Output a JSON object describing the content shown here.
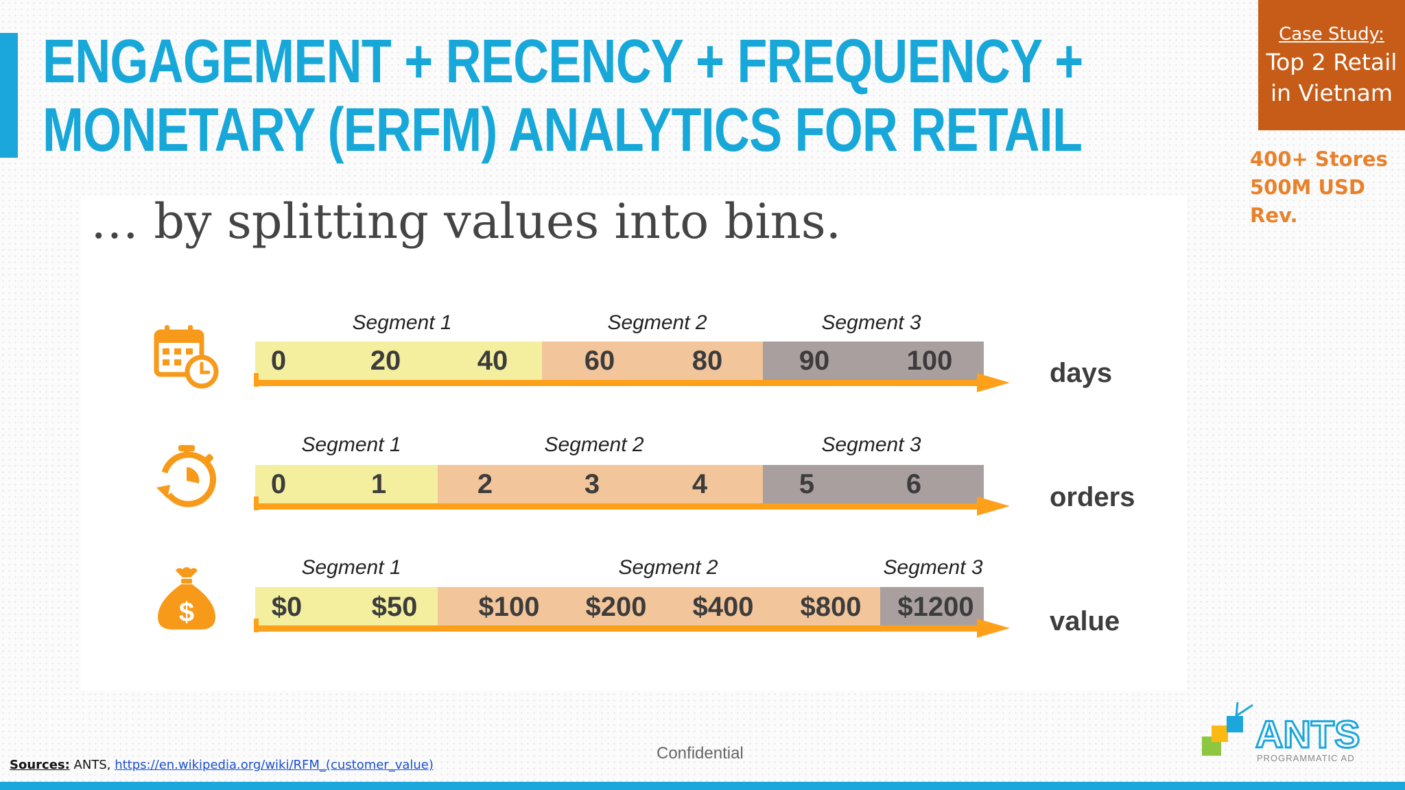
{
  "title": {
    "line1": "ENGAGEMENT + RECENCY + FREQUENCY +",
    "line2": "MONETARY (ERFM) ANALYTICS FOR RETAIL"
  },
  "case_study": {
    "label": "Case Study:",
    "line1": "Top 2 Retail",
    "line2": "in Vietnam"
  },
  "stats": {
    "line1": "400+ Stores",
    "line2": "500M USD Rev."
  },
  "subtitle": "… by splitting values into bins.",
  "colors": {
    "segment1": "#f3ef9f",
    "segment2": "#f3c59b",
    "segment3": "#a99f9f",
    "arrow": "#fea01a",
    "icon": "#f79a1a",
    "title": "#17a8d9"
  },
  "chart_data": [
    {
      "type": "bar",
      "unit": "days",
      "icon": "calendar-clock-icon",
      "ticks": [
        "0",
        "20",
        "40",
        "60",
        "80",
        "90",
        "100"
      ],
      "segments": [
        {
          "label": "Segment 1",
          "ticks": [
            "0",
            "20",
            "40"
          ]
        },
        {
          "label": "Segment 2",
          "ticks": [
            "60",
            "80"
          ]
        },
        {
          "label": "Segment 3",
          "ticks": [
            "90",
            "100"
          ]
        }
      ]
    },
    {
      "type": "bar",
      "unit": "orders",
      "icon": "stopwatch-icon",
      "ticks": [
        "0",
        "1",
        "2",
        "3",
        "4",
        "5",
        "6"
      ],
      "segments": [
        {
          "label": "Segment 1",
          "ticks": [
            "0",
            "1"
          ]
        },
        {
          "label": "Segment 2",
          "ticks": [
            "2",
            "3",
            "4"
          ]
        },
        {
          "label": "Segment 3",
          "ticks": [
            "5",
            "6"
          ]
        }
      ]
    },
    {
      "type": "bar",
      "unit": "value",
      "icon": "money-bag-icon",
      "ticks": [
        "$0",
        "$50",
        "$100",
        "$200",
        "$400",
        "$800",
        "$1200"
      ],
      "segments": [
        {
          "label": "Segment 1",
          "ticks": [
            "$0",
            "$50"
          ]
        },
        {
          "label": "Segment 2",
          "ticks": [
            "$100",
            "$200",
            "$400",
            "$800"
          ]
        },
        {
          "label": "Segment 3",
          "ticks": [
            "$1200"
          ]
        }
      ]
    }
  ],
  "footer": {
    "confidential": "Confidential",
    "sources_label": "Sources:",
    "sources_text": " ANTS, ",
    "sources_link": "https://en.wikipedia.org/wiki/RFM_(customer_value)"
  },
  "logo": {
    "name": "ANTS",
    "tagline": "PROGRAMMATIC AD"
  }
}
